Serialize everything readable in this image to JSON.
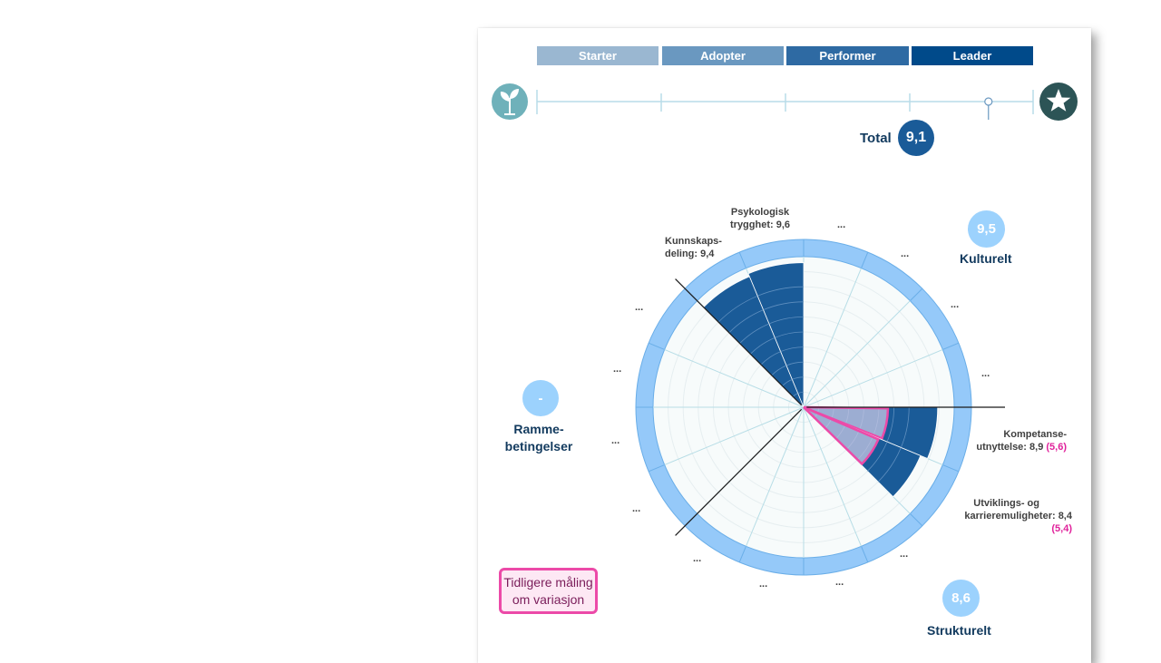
{
  "levels": [
    "Starter",
    "Adopter",
    "Performer",
    "Leader"
  ],
  "total": {
    "label": "Total",
    "value": "9,1",
    "scale_value": 9.1
  },
  "colors": {
    "starter": "#9ab7d1",
    "adopter": "#6a98c0",
    "performer": "#2e6aa3",
    "leader": "#004a8a",
    "ring": "#95c9f9",
    "bar": "#1a5b98",
    "prev": "#ec4aa8",
    "badge": "#9cd2fd"
  },
  "categories": {
    "kulturelt": {
      "label": "Kulturelt",
      "score": "9,5"
    },
    "strukturelt": {
      "label": "Strukturelt",
      "score": "8,6"
    },
    "rammebetingelser": {
      "label_line1": "Ramme-",
      "label_line2": "betingelser",
      "score": "-"
    }
  },
  "segment_labels": {
    "psykologisk_l1": "Psykologisk",
    "psykologisk_l2": "trygghet: 9,6",
    "kunnskaps_l1": "Kunnskaps-",
    "kunnskaps_l2": "deling: 9,4",
    "kompetanse_l1": "Kompetanse-",
    "kompetanse_l2": "utnyttelse: 8,9",
    "kompetanse_prev": "(5,6)",
    "utvikling_l1": "Utviklings- og",
    "utvikling_l2": "karrieremuligheter: 8,4",
    "utvikling_prev": "(5,4)"
  },
  "ellipsis": "...",
  "legend": {
    "line1": "Tidligere måling",
    "line2": "om variasjon"
  },
  "chart_data": {
    "type": "polar-area",
    "segments": 16,
    "max": 10,
    "series": [
      {
        "name": "Psykologisk trygghet",
        "value": 9.6,
        "previous": null
      },
      {
        "name": "Kunnskapsdeling",
        "value": 9.4,
        "previous": null
      },
      {
        "name": "Kompetanseutnyttelse",
        "value": 8.9,
        "previous": 5.6
      },
      {
        "name": "Utviklings- og karrieremuligheter",
        "value": 8.4,
        "previous": 5.4
      }
    ]
  }
}
